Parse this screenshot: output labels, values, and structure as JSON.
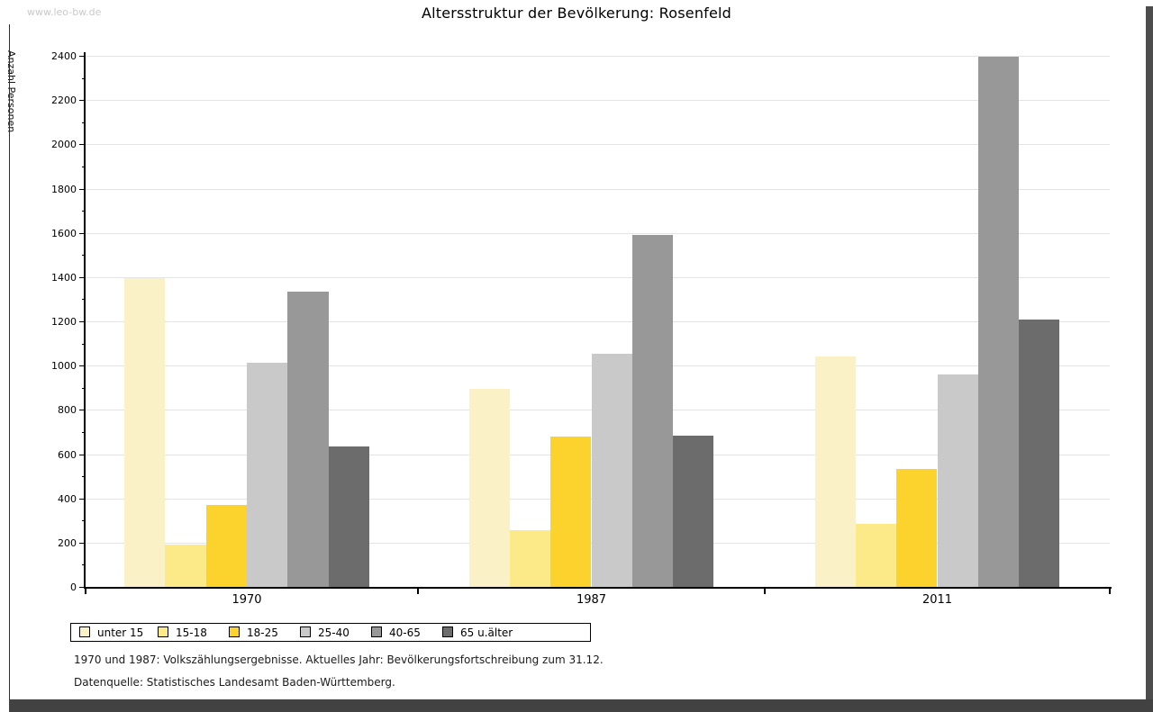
{
  "header": {
    "url": "www.leo-bw.de"
  },
  "chart_data": {
    "type": "bar",
    "title": "Altersstruktur der Bevölkerung: Rosenfeld",
    "ylabel": "Anzahl Personen",
    "xlabel": "",
    "categories": [
      "1970",
      "1987",
      "2011"
    ],
    "series": [
      {
        "name": "unter 15",
        "color": "#faf2c6",
        "values": [
          1395,
          895,
          1040
        ]
      },
      {
        "name": "15-18",
        "color": "#fce987",
        "values": [
          190,
          255,
          285
        ]
      },
      {
        "name": "18-25",
        "color": "#fcd22d",
        "values": [
          370,
          680,
          535
        ]
      },
      {
        "name": "25-40",
        "color": "#c9c9c9",
        "values": [
          1015,
          1055,
          960
        ]
      },
      {
        "name": "40-65",
        "color": "#989898",
        "values": [
          1335,
          1590,
          2395
        ]
      },
      {
        "name": "65 u.älter",
        "color": "#6c6c6c",
        "values": [
          635,
          685,
          1210
        ]
      }
    ],
    "ylim": [
      0,
      2400
    ],
    "ytick_step": 200,
    "ytick_minor_step": 100,
    "yticks": [
      0,
      200,
      400,
      600,
      800,
      1000,
      1200,
      1400,
      1600,
      1800,
      2000,
      2200,
      2400
    ],
    "grid": true,
    "legend_position": "bottom-left"
  },
  "notes": {
    "line1": "1970 und 1987: Volkszählungsergebnisse. Aktuelles Jahr: Bevölkerungsfortschreibung zum 31.12.",
    "line2": "Datenquelle: Statistisches Landesamt Baden-Württemberg."
  }
}
